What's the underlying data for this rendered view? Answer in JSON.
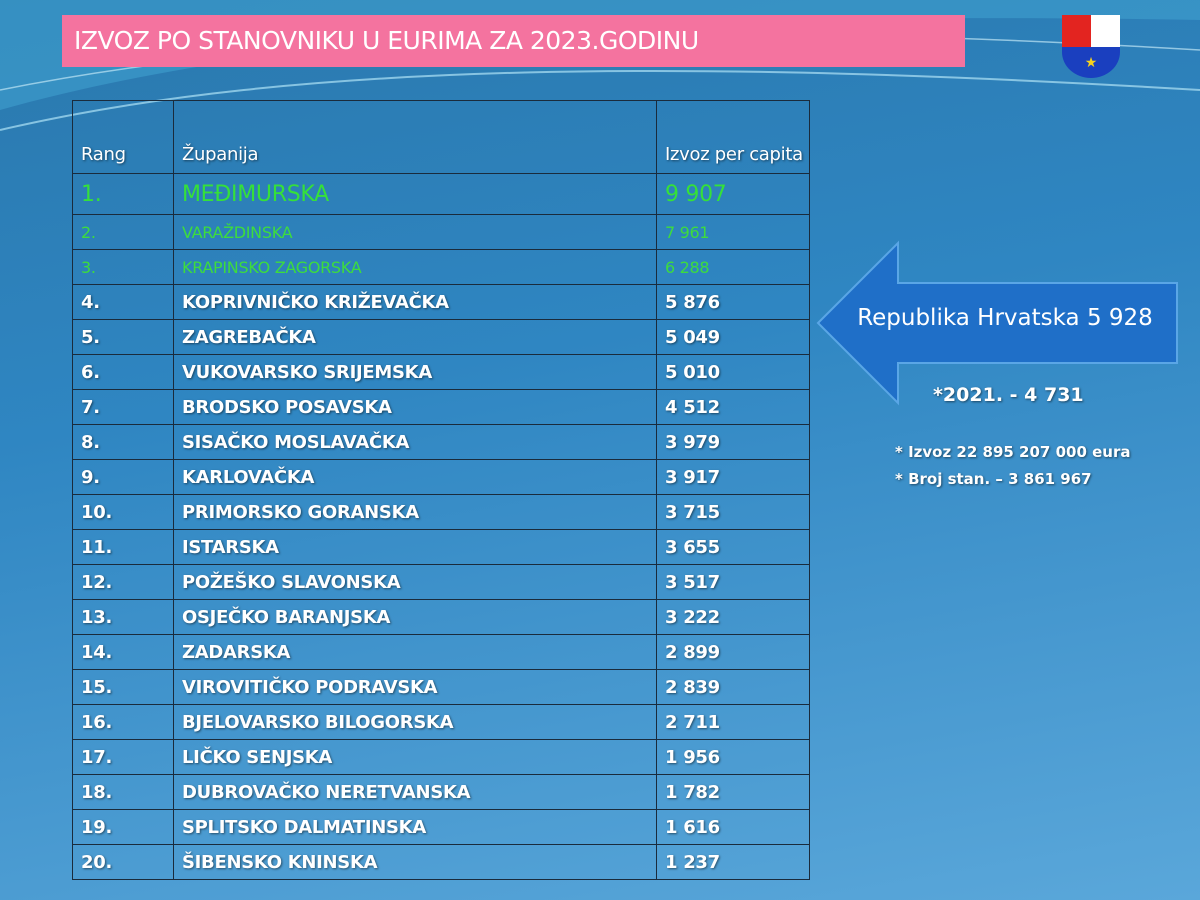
{
  "title": "IZVOZ PO STANOVNIKU U EURIMA ZA 2023.GODINU",
  "table": {
    "header": [
      "Rang",
      "Županija",
      "Izvoz per capita"
    ],
    "rows": [
      [
        "1.",
        "MEĐIMURSKA",
        "9 907"
      ],
      [
        "2.",
        "VARAŽDINSKA",
        "7 961"
      ],
      [
        "3.",
        "KRAPINSKO ZAGORSKA",
        "6 288"
      ],
      [
        "4.",
        "KOPRIVNIČKO KRIŽEVAČKA",
        "5 876"
      ],
      [
        "5.",
        "ZAGREBAČKA",
        "5 049"
      ],
      [
        "6.",
        "VUKOVARSKO SRIJEMSKA",
        "5 010"
      ],
      [
        "7.",
        "BRODSKO POSAVSKA",
        "4 512"
      ],
      [
        "8.",
        "SISAČKO MOSLAVAČKA",
        "3 979"
      ],
      [
        "9.",
        "KARLOVAČKA",
        "3 917"
      ],
      [
        "10.",
        "PRIMORSKO GORANSKA",
        "3 715"
      ],
      [
        "11.",
        "ISTARSKA",
        "3 655"
      ],
      [
        "12.",
        "POŽEŠKO SLAVONSKA",
        "3 517"
      ],
      [
        "13.",
        "OSJEČKO BARANJSKA",
        "3 222"
      ],
      [
        "14.",
        "ZADARSKA",
        "2 899"
      ],
      [
        "15.",
        "VIROVITIČKO PODRAVSKA",
        "2 839"
      ],
      [
        "16.",
        "BJELOVARSKO BILOGORSKA",
        "2 711"
      ],
      [
        "17.",
        "LIČKO SENJSKA",
        "1 956"
      ],
      [
        "18.",
        "DUBROVAČKO NERETVANSKA",
        "1 782"
      ],
      [
        "19.",
        "SPLITSKO DALMATINSKA",
        "1 616"
      ],
      [
        "20.",
        "ŠIBENSKO KNINSKA",
        "1 237"
      ]
    ]
  },
  "arrow": {
    "label": "Republika Hrvatska  5 928"
  },
  "notes": [
    "*2021. - 4 731",
    "* Izvoz 22 895 207 000 eura",
    "* Broj stan. – 3 861 967"
  ]
}
